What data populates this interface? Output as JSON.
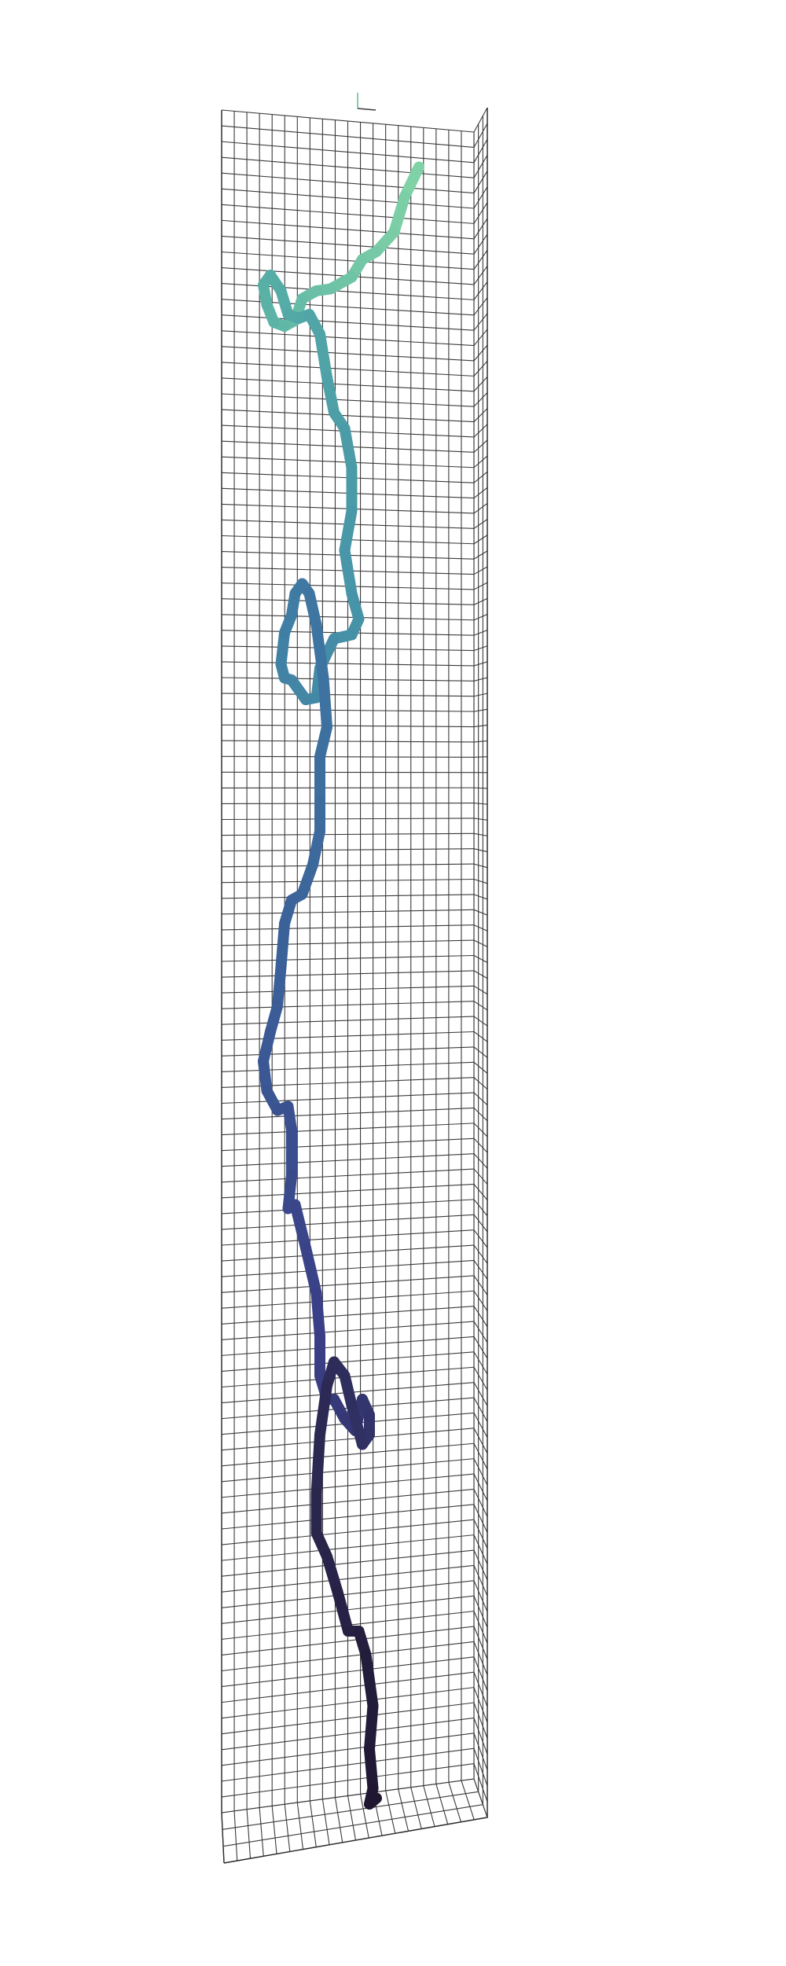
{
  "chart_data": {
    "type": "line",
    "title": "",
    "xlabel": "",
    "ylabel": "",
    "zlabel": "",
    "grid": true,
    "legend": "none",
    "colormap": [
      "#1f1630",
      "#2d2b56",
      "#3a3f86",
      "#3b5f98",
      "#3f7aa3",
      "#4795a8",
      "#58b0a6",
      "#7fd1a6"
    ],
    "series": [
      {
        "values_note": "",
        "points": [
          [
            0.74,
            0.085
          ],
          [
            0.7,
            0.1
          ],
          [
            0.67,
            0.118
          ],
          [
            0.62,
            0.128
          ],
          [
            0.58,
            0.132
          ],
          [
            0.55,
            0.141
          ],
          [
            0.49,
            0.147
          ],
          [
            0.45,
            0.148
          ],
          [
            0.41,
            0.152
          ],
          [
            0.39,
            0.163
          ],
          [
            0.36,
            0.166
          ],
          [
            0.33,
            0.164
          ],
          [
            0.31,
            0.155
          ],
          [
            0.3,
            0.145
          ],
          [
            0.32,
            0.14
          ],
          [
            0.35,
            0.148
          ],
          [
            0.37,
            0.16
          ],
          [
            0.4,
            0.162
          ],
          [
            0.43,
            0.16
          ],
          [
            0.46,
            0.17
          ],
          [
            0.48,
            0.192
          ],
          [
            0.5,
            0.21
          ],
          [
            0.53,
            0.218
          ],
          [
            0.55,
            0.238
          ],
          [
            0.55,
            0.26
          ],
          [
            0.53,
            0.28
          ],
          [
            0.55,
            0.302
          ],
          [
            0.57,
            0.315
          ],
          [
            0.55,
            0.323
          ],
          [
            0.5,
            0.325
          ],
          [
            0.46,
            0.34
          ],
          [
            0.45,
            0.355
          ],
          [
            0.42,
            0.356
          ],
          [
            0.38,
            0.346
          ],
          [
            0.36,
            0.345
          ],
          [
            0.35,
            0.338
          ],
          [
            0.36,
            0.322
          ],
          [
            0.38,
            0.313
          ],
          [
            0.39,
            0.302
          ],
          [
            0.41,
            0.297
          ],
          [
            0.43,
            0.302
          ],
          [
            0.45,
            0.318
          ],
          [
            0.47,
            0.345
          ],
          [
            0.48,
            0.37
          ],
          [
            0.46,
            0.385
          ],
          [
            0.46,
            0.408
          ],
          [
            0.46,
            0.423
          ],
          [
            0.44,
            0.44
          ],
          [
            0.41,
            0.455
          ],
          [
            0.38,
            0.458
          ],
          [
            0.36,
            0.47
          ],
          [
            0.35,
            0.492
          ],
          [
            0.34,
            0.512
          ],
          [
            0.32,
            0.525
          ],
          [
            0.3,
            0.54
          ],
          [
            0.31,
            0.555
          ],
          [
            0.34,
            0.565
          ],
          [
            0.37,
            0.563
          ],
          [
            0.38,
            0.575
          ],
          [
            0.38,
            0.598
          ],
          [
            0.37,
            0.615
          ],
          [
            0.39,
            0.613
          ],
          [
            0.42,
            0.635
          ],
          [
            0.45,
            0.658
          ],
          [
            0.46,
            0.68
          ],
          [
            0.46,
            0.7
          ],
          [
            0.48,
            0.712
          ],
          [
            0.5,
            0.712
          ],
          [
            0.53,
            0.722
          ],
          [
            0.56,
            0.728
          ],
          [
            0.58,
            0.712
          ],
          [
            0.6,
            0.72
          ],
          [
            0.6,
            0.73
          ],
          [
            0.58,
            0.735
          ],
          [
            0.55,
            0.715
          ],
          [
            0.53,
            0.7
          ],
          [
            0.5,
            0.693
          ],
          [
            0.48,
            0.705
          ],
          [
            0.46,
            0.73
          ],
          [
            0.45,
            0.76
          ],
          [
            0.45,
            0.78
          ],
          [
            0.48,
            0.792
          ],
          [
            0.51,
            0.81
          ],
          [
            0.54,
            0.83
          ],
          [
            0.57,
            0.83
          ],
          [
            0.59,
            0.842
          ],
          [
            0.61,
            0.868
          ],
          [
            0.6,
            0.89
          ],
          [
            0.61,
            0.91
          ],
          [
            0.6,
            0.918
          ],
          [
            0.62,
            0.915
          ]
        ]
      }
    ]
  }
}
